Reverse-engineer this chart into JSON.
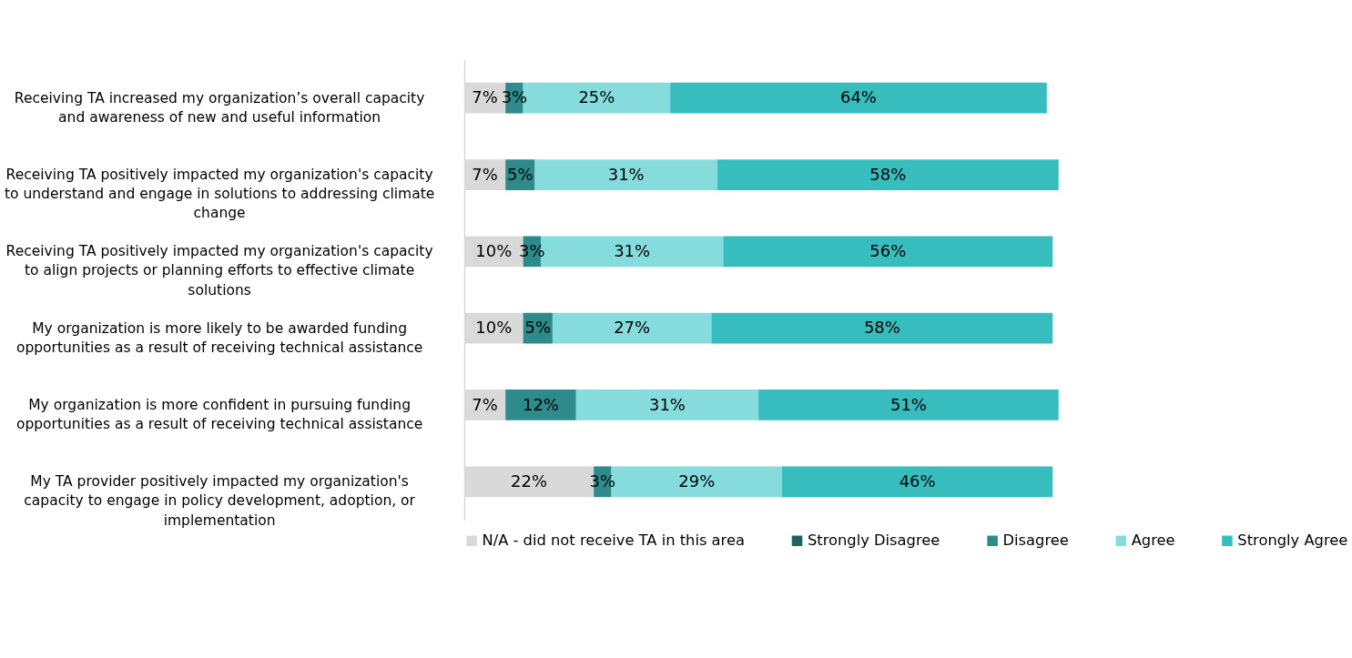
{
  "chart_data": {
    "type": "bar",
    "orientation": "horizontal",
    "stacked": true,
    "legend": "bottom",
    "categories": [
      "Receiving TA increased my organization’s overall capacity and awareness of new and useful information",
      "Receiving TA positively impacted my organization's capacity to understand and engage in solutions to addressing climate change",
      "Receiving TA positively impacted my organization's capacity to align projects or planning efforts to effective climate solutions",
      "My organization is more likely to be awarded funding opportunities as a result of receiving technical assistance",
      "My organization is more confident in pursuing funding opportunities as a result of receiving technical assistance",
      "My TA provider positively impacted my organization's capacity to engage in policy development, adoption, or implementation"
    ],
    "series": [
      {
        "name": "N/A - did not receive TA in this area",
        "color": "#d9d9d9",
        "values": [
          7,
          7,
          10,
          10,
          7,
          22
        ],
        "value_labels": [
          "7%",
          "7%",
          "10%",
          "10%",
          "7%",
          "22%"
        ]
      },
      {
        "name": "Strongly Disagree",
        "color": "#1f6464",
        "values": [
          null,
          null,
          null,
          null,
          null,
          null
        ],
        "value_labels": [
          null,
          null,
          null,
          null,
          null,
          null
        ]
      },
      {
        "name": "Disagree",
        "color": "#2e8b8b",
        "values": [
          3,
          5,
          3,
          5,
          12,
          3
        ],
        "value_labels": [
          "3%",
          "5%",
          "3%",
          "5%",
          "12%",
          "3%"
        ]
      },
      {
        "name": "Agree",
        "color": "#86dcdc",
        "values": [
          25,
          31,
          31,
          27,
          31,
          29
        ],
        "value_labels": [
          "25%",
          "31%",
          "31%",
          "27%",
          "31%",
          "29%"
        ]
      },
      {
        "name": "Strongly Agree",
        "color": "#38bdbf",
        "values": [
          64,
          58,
          56,
          58,
          51,
          46
        ],
        "value_labels": [
          "64%",
          "58%",
          "56%",
          "58%",
          "51%",
          "46%"
        ]
      }
    ]
  }
}
